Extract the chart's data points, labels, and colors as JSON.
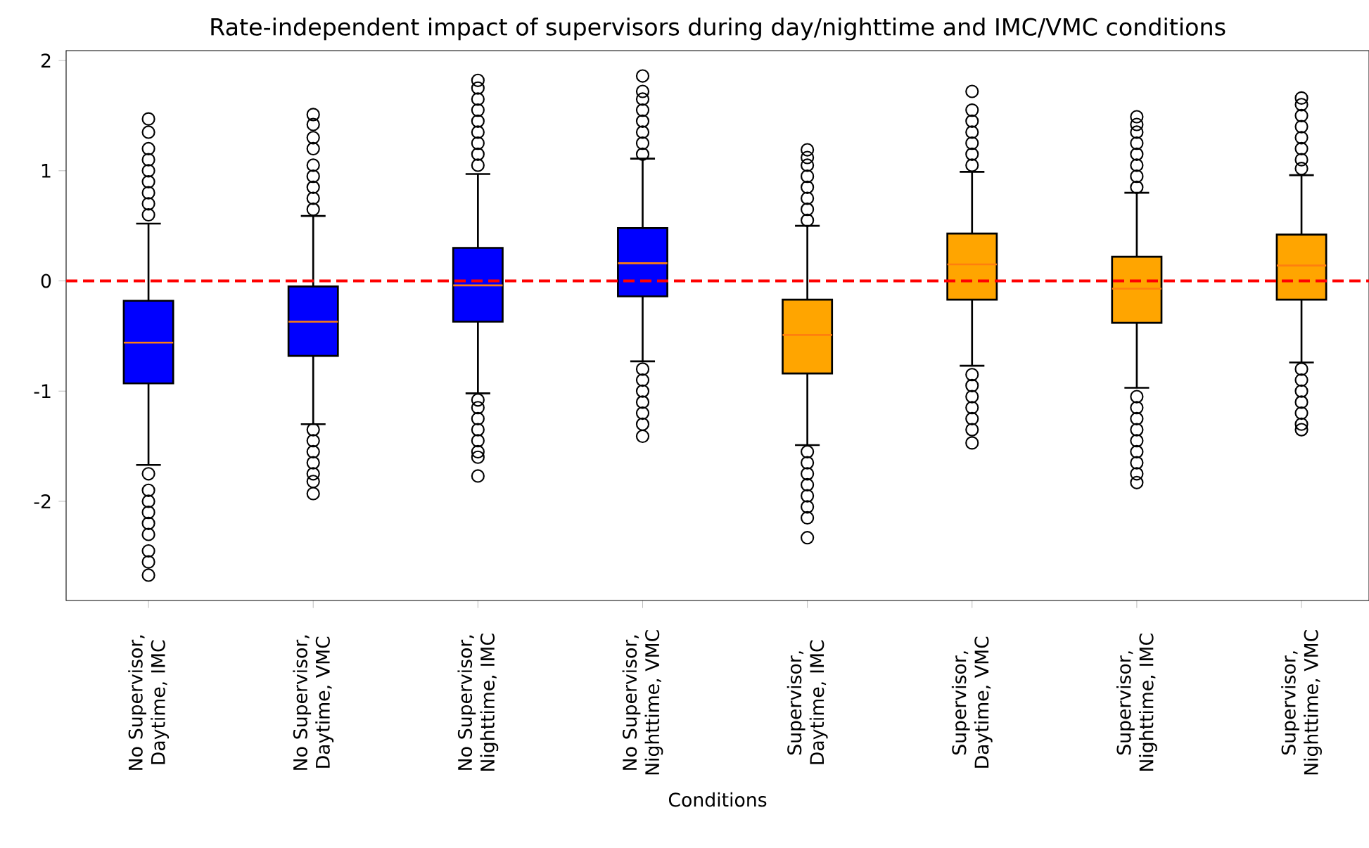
{
  "chart_data": {
    "type": "box",
    "title": "Rate-independent impact of supervisors during day/nighttime and IMC/VMC conditions",
    "xlabel": "Conditions",
    "categories": [
      "No Supervisor, Daytime, IMC",
      "No Supervisor, Daytime, VMC",
      "No Supervisor, Nighttime, IMC",
      "No Supervisor, Nighttime, VMC",
      "Supervisor, Daytime, IMC",
      "Supervisor, Daytime, VMC",
      "Supervisor, Nighttime, IMC",
      "Supervisor, Nighttime, VMC"
    ],
    "colors": [
      "#0000ff",
      "#0000ff",
      "#0000ff",
      "#0000ff",
      "#ffa500",
      "#ffa500",
      "#ffa500",
      "#ffa500"
    ],
    "boxes": [
      {
        "low": -1.67,
        "q1": -0.93,
        "median": -0.56,
        "q3": -0.18,
        "high": 0.52,
        "outliers": [
          0.6,
          0.7,
          0.8,
          0.9,
          1.0,
          1.1,
          1.2,
          1.35,
          1.47,
          -1.75,
          -1.9,
          -2.0,
          -2.1,
          -2.2,
          -2.3,
          -2.45,
          -2.55,
          -2.67
        ]
      },
      {
        "low": -1.3,
        "q1": -0.68,
        "median": -0.37,
        "q3": -0.05,
        "high": 0.59,
        "outliers": [
          0.65,
          0.75,
          0.85,
          0.95,
          1.05,
          1.2,
          1.3,
          1.42,
          1.51,
          -1.35,
          -1.45,
          -1.55,
          -1.65,
          -1.75,
          -1.82,
          -1.93
        ]
      },
      {
        "low": -1.02,
        "q1": -0.37,
        "median": -0.04,
        "q3": 0.3,
        "high": 0.97,
        "outliers": [
          1.05,
          1.15,
          1.25,
          1.35,
          1.45,
          1.55,
          1.65,
          1.75,
          1.82,
          -1.08,
          -1.15,
          -1.25,
          -1.35,
          -1.45,
          -1.55,
          -1.6,
          -1.77
        ]
      },
      {
        "low": -0.73,
        "q1": -0.14,
        "median": 0.16,
        "q3": 0.48,
        "high": 1.11,
        "outliers": [
          1.15,
          1.25,
          1.35,
          1.45,
          1.55,
          1.65,
          1.72,
          1.86,
          -0.8,
          -0.9,
          -1.0,
          -1.1,
          -1.2,
          -1.3,
          -1.41
        ]
      },
      {
        "low": -1.49,
        "q1": -0.84,
        "median": -0.49,
        "q3": -0.17,
        "high": 0.5,
        "outliers": [
          0.55,
          0.65,
          0.75,
          0.85,
          0.95,
          1.05,
          1.12,
          1.19,
          -1.55,
          -1.65,
          -1.75,
          -1.85,
          -1.95,
          -2.05,
          -2.15,
          -2.33
        ]
      },
      {
        "low": -0.77,
        "q1": -0.17,
        "median": 0.15,
        "q3": 0.43,
        "high": 0.99,
        "outliers": [
          1.05,
          1.15,
          1.25,
          1.35,
          1.45,
          1.55,
          1.72,
          -0.85,
          -0.95,
          -1.05,
          -1.15,
          -1.25,
          -1.35,
          -1.47
        ]
      },
      {
        "low": -0.97,
        "q1": -0.38,
        "median": -0.07,
        "q3": 0.22,
        "high": 0.8,
        "outliers": [
          0.85,
          0.95,
          1.05,
          1.15,
          1.25,
          1.35,
          1.42,
          1.49,
          -1.05,
          -1.15,
          -1.25,
          -1.35,
          -1.45,
          -1.55,
          -1.65,
          -1.75,
          -1.83
        ]
      },
      {
        "low": -0.74,
        "q1": -0.17,
        "median": 0.14,
        "q3": 0.42,
        "high": 0.96,
        "outliers": [
          1.02,
          1.1,
          1.2,
          1.3,
          1.4,
          1.5,
          1.6,
          1.66,
          -0.8,
          -0.9,
          -1.0,
          -1.1,
          -1.2,
          -1.3,
          -1.35
        ]
      }
    ],
    "ylim": [
      -2.9,
      2.09
    ],
    "yticks": [
      -2,
      -1,
      0,
      1,
      2
    ],
    "grid": false,
    "marker": "circle",
    "ref_lines": [
      {
        "axis": "y",
        "value": 0,
        "color": "#ff0000",
        "line_style": "dashed"
      }
    ]
  }
}
